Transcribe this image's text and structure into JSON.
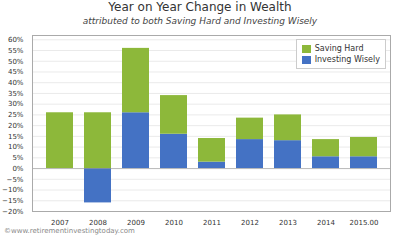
{
  "chart_data": {
    "type": "bar",
    "title": "Year on Year Change in Wealth",
    "subtitle": "attributed to both Saving Hard and Investing Wisely",
    "annotations": [
      "©www.retirementinvestingtoday.com"
    ],
    "categories": [
      "2007",
      "2008",
      "2009",
      "2010",
      "2011",
      "2012",
      "2013",
      "2014",
      "2015.00"
    ],
    "series": [
      {
        "name": "Investing Wisely",
        "color": "#4472c4",
        "values": [
          0.0,
          -0.16,
          0.26,
          0.16,
          0.03,
          0.135,
          0.13,
          0.055,
          0.055
        ]
      },
      {
        "name": "Saving Hard",
        "color": "#8db83a",
        "values": [
          0.26,
          0.26,
          0.3,
          0.18,
          0.11,
          0.1,
          0.12,
          0.08,
          0.09
        ]
      }
    ],
    "stacked": true,
    "ylim": [
      -0.2,
      0.62
    ],
    "yticks": [
      {
        "value": -0.2,
        "label": "−20%"
      },
      {
        "value": -0.15,
        "label": "−15%"
      },
      {
        "value": -0.1,
        "label": "−10%"
      },
      {
        "value": -0.05,
        "label": "−5%"
      },
      {
        "value": 0.0,
        "label": "0%"
      },
      {
        "value": 0.05,
        "label": "5%"
      },
      {
        "value": 0.1,
        "label": "10%"
      },
      {
        "value": 0.15,
        "label": "15%"
      },
      {
        "value": 0.2,
        "label": "20%"
      },
      {
        "value": 0.25,
        "label": "25%"
      },
      {
        "value": 0.3,
        "label": "30%"
      },
      {
        "value": 0.35,
        "label": "35%"
      },
      {
        "value": 0.4,
        "label": "40%"
      },
      {
        "value": 0.45,
        "label": "45%"
      },
      {
        "value": 0.5,
        "label": "50%"
      },
      {
        "value": 0.55,
        "label": "55%"
      },
      {
        "value": 0.6,
        "label": "60%"
      }
    ],
    "grid": true,
    "legend": "upper right"
  }
}
